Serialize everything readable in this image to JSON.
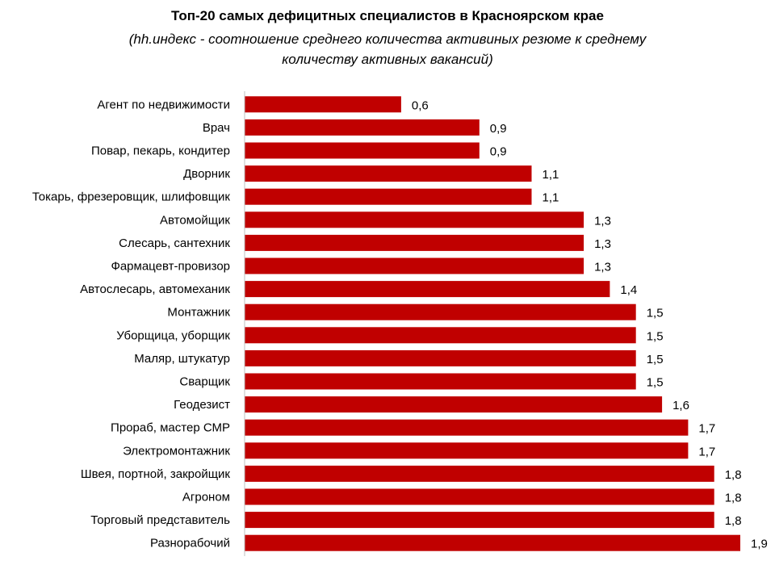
{
  "chart_data": {
    "type": "bar",
    "orientation": "horizontal",
    "title": "Топ-20 самых дефицитных специалистов в Красноярском крае",
    "subtitle": "(hh.индекс - соотношение среднего количества активиных резюме к среднему количеству активных вакансий)",
    "categories": [
      "Агент по недвижимости",
      "Врач",
      "Повар, пекарь, кондитер",
      "Дворник",
      "Токарь, фрезеровщик, шлифовщик",
      "Автомойщик",
      "Слесарь, сантехник",
      "Фармацевт-провизор",
      "Автослесарь, автомеханик",
      "Монтажник",
      "Уборщица, уборщик",
      "Маляр, штукатур",
      "Сварщик",
      "Геодезист",
      "Прораб, мастер СМР",
      "Электромонтажник",
      "Швея, портной, закройщик",
      "Агроном",
      "Торговый представитель",
      "Разнорабочий"
    ],
    "values": [
      0.6,
      0.9,
      0.9,
      1.1,
      1.1,
      1.3,
      1.3,
      1.3,
      1.4,
      1.5,
      1.5,
      1.5,
      1.5,
      1.6,
      1.7,
      1.7,
      1.8,
      1.8,
      1.8,
      1.9
    ],
    "value_labels": [
      "0,6",
      "0,9",
      "0,9",
      "1,1",
      "1,1",
      "1,3",
      "1,3",
      "1,3",
      "1,4",
      "1,5",
      "1,5",
      "1,5",
      "1,5",
      "1,6",
      "1,7",
      "1,7",
      "1,8",
      "1,8",
      "1,8",
      "1,9"
    ],
    "xlim": [
      0,
      1.9
    ],
    "grid": false,
    "legend": "none",
    "bar_color": "#c00000",
    "axis_color": "#bfbfbf"
  }
}
